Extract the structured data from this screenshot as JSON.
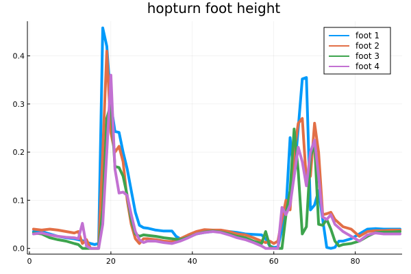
{
  "chart_data": {
    "type": "line",
    "title": "hopturn foot height",
    "xlabel": "",
    "ylabel": "",
    "xlim": [
      -0.5,
      91.5
    ],
    "ylim": [
      -0.012,
      0.472
    ],
    "xticks": [
      0,
      20,
      40,
      60,
      80
    ],
    "yticks": [
      0.0,
      0.1,
      0.2,
      0.3,
      0.4
    ],
    "ytick_labels": [
      "0.0",
      "0.1",
      "0.2",
      "0.3",
      "0.4"
    ],
    "grid": true,
    "legend_position": "top-right",
    "series": [
      {
        "name": "foot 1",
        "color": "#009AFA",
        "points": [
          [
            1,
            0.035
          ],
          [
            3,
            0.035
          ],
          [
            5,
            0.03
          ],
          [
            7,
            0.025
          ],
          [
            9,
            0.022
          ],
          [
            11,
            0.02
          ],
          [
            13,
            0.016
          ],
          [
            15,
            0.01
          ],
          [
            16,
            0.008
          ],
          [
            17,
            0.01
          ],
          [
            18,
            0.458
          ],
          [
            19,
            0.42
          ],
          [
            20,
            0.3
          ],
          [
            21,
            0.243
          ],
          [
            22,
            0.241
          ],
          [
            23,
            0.2
          ],
          [
            24,
            0.165
          ],
          [
            25,
            0.12
          ],
          [
            26,
            0.075
          ],
          [
            27,
            0.048
          ],
          [
            28,
            0.043
          ],
          [
            29,
            0.042
          ],
          [
            31,
            0.038
          ],
          [
            33,
            0.036
          ],
          [
            35,
            0.036
          ],
          [
            36,
            0.025
          ],
          [
            37,
            0.02
          ],
          [
            39,
            0.023
          ],
          [
            41,
            0.03
          ],
          [
            43,
            0.033
          ],
          [
            45,
            0.035
          ],
          [
            47,
            0.036
          ],
          [
            49,
            0.035
          ],
          [
            51,
            0.033
          ],
          [
            53,
            0.03
          ],
          [
            55,
            0.029
          ],
          [
            57,
            0.028
          ],
          [
            58,
            0.02
          ],
          [
            59,
            0.005
          ],
          [
            60,
            0.002
          ],
          [
            61,
            0.003
          ],
          [
            62,
            0.04
          ],
          [
            63,
            0.08
          ],
          [
            64,
            0.23
          ],
          [
            65,
            0.15
          ],
          [
            66,
            0.25
          ],
          [
            67,
            0.352
          ],
          [
            68,
            0.355
          ],
          [
            69,
            0.08
          ],
          [
            70,
            0.09
          ],
          [
            71,
            0.12
          ],
          [
            72,
            0.06
          ],
          [
            73,
            0.002
          ],
          [
            74,
            0.0
          ],
          [
            75,
            0.002
          ],
          [
            76,
            0.015
          ],
          [
            77,
            0.015
          ],
          [
            79,
            0.02
          ],
          [
            81,
            0.03
          ],
          [
            83,
            0.04
          ],
          [
            85,
            0.041
          ],
          [
            87,
            0.04
          ],
          [
            89,
            0.04
          ],
          [
            91,
            0.04
          ]
        ]
      },
      {
        "name": "foot 2",
        "color": "#E26F46",
        "points": [
          [
            1,
            0.04
          ],
          [
            3,
            0.038
          ],
          [
            5,
            0.04
          ],
          [
            7,
            0.038
          ],
          [
            9,
            0.035
          ],
          [
            11,
            0.032
          ],
          [
            12,
            0.035
          ],
          [
            13,
            0.01
          ],
          [
            14,
            0.018
          ],
          [
            15,
            0.0
          ],
          [
            17,
            0.0
          ],
          [
            18,
            0.2
          ],
          [
            19,
            0.41
          ],
          [
            20,
            0.24
          ],
          [
            21,
            0.2
          ],
          [
            22,
            0.212
          ],
          [
            23,
            0.18
          ],
          [
            24,
            0.1
          ],
          [
            25,
            0.05
          ],
          [
            26,
            0.02
          ],
          [
            27,
            0.01
          ],
          [
            28,
            0.02
          ],
          [
            29,
            0.02
          ],
          [
            31,
            0.018
          ],
          [
            33,
            0.015
          ],
          [
            35,
            0.014
          ],
          [
            37,
            0.02
          ],
          [
            39,
            0.028
          ],
          [
            41,
            0.035
          ],
          [
            43,
            0.039
          ],
          [
            45,
            0.038
          ],
          [
            47,
            0.038
          ],
          [
            49,
            0.035
          ],
          [
            51,
            0.03
          ],
          [
            53,
            0.028
          ],
          [
            55,
            0.022
          ],
          [
            57,
            0.015
          ],
          [
            58,
            0.012
          ],
          [
            59,
            0.015
          ],
          [
            60,
            0.01
          ],
          [
            61,
            0.015
          ],
          [
            62,
            0.06
          ],
          [
            63,
            0.1
          ],
          [
            64,
            0.08
          ],
          [
            65,
            0.2
          ],
          [
            66,
            0.26
          ],
          [
            67,
            0.27
          ],
          [
            68,
            0.14
          ],
          [
            69,
            0.15
          ],
          [
            70,
            0.26
          ],
          [
            71,
            0.2
          ],
          [
            72,
            0.07
          ],
          [
            73,
            0.072
          ],
          [
            74,
            0.075
          ],
          [
            75,
            0.06
          ],
          [
            77,
            0.045
          ],
          [
            79,
            0.04
          ],
          [
            81,
            0.025
          ],
          [
            83,
            0.035
          ],
          [
            85,
            0.037
          ],
          [
            87,
            0.037
          ],
          [
            89,
            0.038
          ],
          [
            91,
            0.038
          ]
        ]
      },
      {
        "name": "foot 3",
        "color": "#3DA44D",
        "points": [
          [
            1,
            0.032
          ],
          [
            3,
            0.03
          ],
          [
            5,
            0.022
          ],
          [
            7,
            0.018
          ],
          [
            9,
            0.015
          ],
          [
            11,
            0.01
          ],
          [
            12,
            0.008
          ],
          [
            13,
            0.0
          ],
          [
            15,
            0.0
          ],
          [
            17,
            0.0
          ],
          [
            18,
            0.08
          ],
          [
            19,
            0.27
          ],
          [
            20,
            0.3
          ],
          [
            21,
            0.17
          ],
          [
            22,
            0.168
          ],
          [
            23,
            0.15
          ],
          [
            24,
            0.11
          ],
          [
            25,
            0.06
          ],
          [
            26,
            0.03
          ],
          [
            27,
            0.025
          ],
          [
            28,
            0.028
          ],
          [
            29,
            0.027
          ],
          [
            31,
            0.025
          ],
          [
            33,
            0.022
          ],
          [
            35,
            0.02
          ],
          [
            37,
            0.018
          ],
          [
            39,
            0.023
          ],
          [
            41,
            0.03
          ],
          [
            43,
            0.034
          ],
          [
            45,
            0.036
          ],
          [
            47,
            0.034
          ],
          [
            49,
            0.03
          ],
          [
            51,
            0.025
          ],
          [
            53,
            0.022
          ],
          [
            55,
            0.015
          ],
          [
            57,
            0.01
          ],
          [
            58,
            0.035
          ],
          [
            59,
            0.005
          ],
          [
            60,
            0.0
          ],
          [
            62,
            0.0
          ],
          [
            63,
            0.07
          ],
          [
            64,
            0.12
          ],
          [
            65,
            0.248
          ],
          [
            66,
            0.16
          ],
          [
            67,
            0.03
          ],
          [
            68,
            0.045
          ],
          [
            69,
            0.19
          ],
          [
            70,
            0.22
          ],
          [
            71,
            0.05
          ],
          [
            72,
            0.048
          ],
          [
            73,
            0.06
          ],
          [
            74,
            0.04
          ],
          [
            75,
            0.015
          ],
          [
            76,
            0.005
          ],
          [
            77,
            0.008
          ],
          [
            79,
            0.01
          ],
          [
            81,
            0.015
          ],
          [
            83,
            0.025
          ],
          [
            85,
            0.033
          ],
          [
            87,
            0.034
          ],
          [
            89,
            0.034
          ],
          [
            91,
            0.035
          ]
        ]
      },
      {
        "name": "foot 4",
        "color": "#C271D2",
        "points": [
          [
            1,
            0.03
          ],
          [
            3,
            0.032
          ],
          [
            5,
            0.028
          ],
          [
            7,
            0.025
          ],
          [
            9,
            0.023
          ],
          [
            11,
            0.022
          ],
          [
            12,
            0.02
          ],
          [
            13,
            0.052
          ],
          [
            14,
            0.005
          ],
          [
            15,
            0.0
          ],
          [
            17,
            0.0
          ],
          [
            18,
            0.05
          ],
          [
            19,
            0.2
          ],
          [
            20,
            0.36
          ],
          [
            21,
            0.165
          ],
          [
            22,
            0.115
          ],
          [
            23,
            0.117
          ],
          [
            24,
            0.11
          ],
          [
            25,
            0.07
          ],
          [
            26,
            0.035
          ],
          [
            27,
            0.018
          ],
          [
            28,
            0.012
          ],
          [
            29,
            0.015
          ],
          [
            31,
            0.015
          ],
          [
            33,
            0.012
          ],
          [
            35,
            0.01
          ],
          [
            37,
            0.015
          ],
          [
            39,
            0.022
          ],
          [
            41,
            0.03
          ],
          [
            43,
            0.033
          ],
          [
            45,
            0.035
          ],
          [
            47,
            0.033
          ],
          [
            49,
            0.028
          ],
          [
            51,
            0.022
          ],
          [
            53,
            0.018
          ],
          [
            55,
            0.012
          ],
          [
            57,
            0.005
          ],
          [
            58,
            0.0
          ],
          [
            61,
            0.0
          ],
          [
            62,
            0.085
          ],
          [
            63,
            0.07
          ],
          [
            64,
            0.09
          ],
          [
            65,
            0.15
          ],
          [
            66,
            0.21
          ],
          [
            67,
            0.18
          ],
          [
            68,
            0.13
          ],
          [
            69,
            0.2
          ],
          [
            70,
            0.225
          ],
          [
            71,
            0.15
          ],
          [
            72,
            0.065
          ],
          [
            73,
            0.06
          ],
          [
            74,
            0.07
          ],
          [
            75,
            0.05
          ],
          [
            77,
            0.035
          ],
          [
            79,
            0.025
          ],
          [
            81,
            0.015
          ],
          [
            83,
            0.028
          ],
          [
            85,
            0.032
          ],
          [
            87,
            0.03
          ],
          [
            89,
            0.03
          ],
          [
            91,
            0.03
          ]
        ]
      }
    ]
  }
}
